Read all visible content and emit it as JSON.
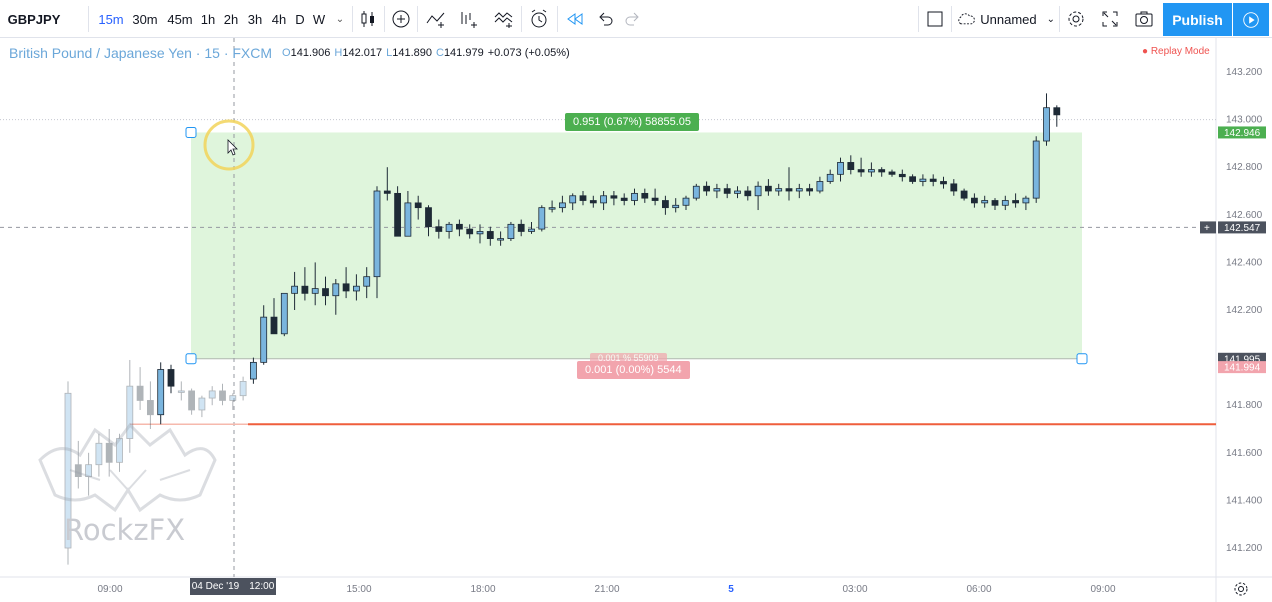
{
  "toolbar": {
    "symbol": "GBPJPY",
    "intervals": [
      "15m",
      "30m",
      "45m",
      "1h",
      "2h",
      "3h",
      "4h",
      "D",
      "W"
    ],
    "active_interval": "15m",
    "layout_name": "Unnamed",
    "publish_label": "Publish",
    "icons": [
      "candles-icon",
      "add-indicator-icon",
      "indicators-icon",
      "compare-icon",
      "templates-icon",
      "alert-icon",
      "replay-icon",
      "undo-icon",
      "redo-icon",
      "layout-icon",
      "cloud-icon",
      "settings-icon",
      "fullscreen-icon",
      "snapshot-icon",
      "play-icon"
    ]
  },
  "legend": {
    "title": "British Pound / Japanese Yen · 15 · FXCM",
    "open_label": "O",
    "open": "141.906",
    "high_label": "H",
    "high": "142.017",
    "low_label": "L",
    "low": "141.890",
    "close_label": "C",
    "close": "141.979",
    "change": "+0.073 (+0.05%)"
  },
  "replay_mode": "● Replay Mode",
  "position_tool": {
    "upper_label": "0.951 (0.67%) 58855.05",
    "lower_label": "0.001 (0.00%) 5544",
    "lower_ghost_label": "0.001 % 55909"
  },
  "price_tags": {
    "target": "142.946",
    "crosshair": "142.547",
    "entry": "141.995",
    "stop": "141.994"
  },
  "time_tag": {
    "date": "04 Dec '19",
    "time": "12:00"
  },
  "watermark": "RockzFX",
  "colors": {
    "up_candle": "#7ab5de",
    "down_candle": "#1e2a36",
    "profit_zone": "#dff5dc",
    "loss_zone": "#f8d7da",
    "stop_line": "#ef5e3c",
    "accent": "#2196f3"
  },
  "chart_data": {
    "type": "candlestick",
    "symbol": "GBPJPY",
    "y_ticks": [
      "143.200",
      "143.000",
      "142.800",
      "142.600",
      "142.400",
      "142.200",
      "142.000",
      "141.800",
      "141.600",
      "141.400",
      "141.200"
    ],
    "ylim": [
      141.13,
      143.24
    ],
    "x_ticks": [
      "09:00",
      "12:00",
      "15:00",
      "18:00",
      "21:00",
      "5",
      "03:00",
      "06:00",
      "09:00"
    ],
    "candles": [
      {
        "o": 141.2,
        "h": 141.9,
        "l": 141.13,
        "c": 141.85,
        "f": 1
      },
      {
        "o": 141.55,
        "h": 141.65,
        "l": 141.45,
        "c": 141.5,
        "f": 1
      },
      {
        "o": 141.5,
        "h": 141.6,
        "l": 141.42,
        "c": 141.55,
        "f": 1
      },
      {
        "o": 141.55,
        "h": 141.68,
        "l": 141.5,
        "c": 141.64,
        "f": 1
      },
      {
        "o": 141.64,
        "h": 141.7,
        "l": 141.5,
        "c": 141.56,
        "f": 1
      },
      {
        "o": 141.56,
        "h": 141.68,
        "l": 141.52,
        "c": 141.66,
        "f": 1
      },
      {
        "o": 141.66,
        "h": 141.99,
        "l": 141.6,
        "c": 141.88,
        "f": 1
      },
      {
        "o": 141.88,
        "h": 141.96,
        "l": 141.78,
        "c": 141.82,
        "f": 1
      },
      {
        "o": 141.82,
        "h": 141.9,
        "l": 141.7,
        "c": 141.76,
        "f": 1
      },
      {
        "o": 141.76,
        "h": 141.98,
        "l": 141.72,
        "c": 141.95,
        "f": 0
      },
      {
        "o": 141.95,
        "h": 141.97,
        "l": 141.85,
        "c": 141.88,
        "f": 0
      },
      {
        "o": 141.86,
        "h": 141.9,
        "l": 141.82,
        "c": 141.86,
        "f": 1
      },
      {
        "o": 141.86,
        "h": 141.87,
        "l": 141.76,
        "c": 141.78,
        "f": 1
      },
      {
        "o": 141.78,
        "h": 141.84,
        "l": 141.75,
        "c": 141.83,
        "f": 1
      },
      {
        "o": 141.83,
        "h": 141.88,
        "l": 141.8,
        "c": 141.86,
        "f": 1
      },
      {
        "o": 141.86,
        "h": 141.89,
        "l": 141.8,
        "c": 141.82,
        "f": 1
      },
      {
        "o": 141.82,
        "h": 141.85,
        "l": 141.78,
        "c": 141.84,
        "f": 1
      },
      {
        "o": 141.84,
        "h": 141.92,
        "l": 141.82,
        "c": 141.9,
        "f": 1
      },
      {
        "o": 141.91,
        "h": 142.0,
        "l": 141.89,
        "c": 141.98,
        "f": 0
      },
      {
        "o": 141.98,
        "h": 142.22,
        "l": 141.97,
        "c": 142.17,
        "f": 0
      },
      {
        "o": 142.17,
        "h": 142.25,
        "l": 142.1,
        "c": 142.1,
        "f": 0
      },
      {
        "o": 142.1,
        "h": 142.27,
        "l": 142.09,
        "c": 142.27,
        "f": 0
      },
      {
        "o": 142.27,
        "h": 142.36,
        "l": 142.2,
        "c": 142.3,
        "f": 0
      },
      {
        "o": 142.3,
        "h": 142.38,
        "l": 142.24,
        "c": 142.27,
        "f": 0
      },
      {
        "o": 142.27,
        "h": 142.4,
        "l": 142.22,
        "c": 142.29,
        "f": 0
      },
      {
        "o": 142.29,
        "h": 142.34,
        "l": 142.22,
        "c": 142.26,
        "f": 0
      },
      {
        "o": 142.26,
        "h": 142.33,
        "l": 142.18,
        "c": 142.31,
        "f": 0
      },
      {
        "o": 142.31,
        "h": 142.38,
        "l": 142.25,
        "c": 142.28,
        "f": 0
      },
      {
        "o": 142.28,
        "h": 142.35,
        "l": 142.24,
        "c": 142.3,
        "f": 0
      },
      {
        "o": 142.3,
        "h": 142.38,
        "l": 142.25,
        "c": 142.34,
        "f": 0
      },
      {
        "o": 142.34,
        "h": 142.72,
        "l": 142.25,
        "c": 142.7,
        "f": 0
      },
      {
        "o": 142.7,
        "h": 142.8,
        "l": 142.66,
        "c": 142.69,
        "f": 0
      },
      {
        "o": 142.69,
        "h": 142.72,
        "l": 142.51,
        "c": 142.51,
        "f": 0
      },
      {
        "o": 142.51,
        "h": 142.7,
        "l": 142.51,
        "c": 142.65,
        "f": 0
      },
      {
        "o": 142.65,
        "h": 142.68,
        "l": 142.58,
        "c": 142.63,
        "f": 0
      },
      {
        "o": 142.63,
        "h": 142.64,
        "l": 142.51,
        "c": 142.55,
        "f": 0
      },
      {
        "o": 142.55,
        "h": 142.58,
        "l": 142.5,
        "c": 142.53,
        "f": 0
      },
      {
        "o": 142.53,
        "h": 142.57,
        "l": 142.5,
        "c": 142.56,
        "f": 0
      },
      {
        "o": 142.56,
        "h": 142.58,
        "l": 142.51,
        "c": 142.54,
        "f": 0
      },
      {
        "o": 142.54,
        "h": 142.56,
        "l": 142.5,
        "c": 142.52,
        "f": 0
      },
      {
        "o": 142.52,
        "h": 142.56,
        "l": 142.48,
        "c": 142.53,
        "f": 0
      },
      {
        "o": 142.53,
        "h": 142.55,
        "l": 142.47,
        "c": 142.5,
        "f": 0
      },
      {
        "o": 142.5,
        "h": 142.53,
        "l": 142.47,
        "c": 142.5,
        "f": 0
      },
      {
        "o": 142.5,
        "h": 142.57,
        "l": 142.49,
        "c": 142.56,
        "f": 0
      },
      {
        "o": 142.56,
        "h": 142.58,
        "l": 142.51,
        "c": 142.53,
        "f": 0
      },
      {
        "o": 142.53,
        "h": 142.57,
        "l": 142.52,
        "c": 142.54,
        "f": 0
      },
      {
        "o": 142.54,
        "h": 142.64,
        "l": 142.53,
        "c": 142.63,
        "f": 0
      },
      {
        "o": 142.63,
        "h": 142.66,
        "l": 142.61,
        "c": 142.63,
        "f": 0
      },
      {
        "o": 142.63,
        "h": 142.68,
        "l": 142.61,
        "c": 142.65,
        "f": 0
      },
      {
        "o": 142.65,
        "h": 142.69,
        "l": 142.62,
        "c": 142.68,
        "f": 0
      },
      {
        "o": 142.68,
        "h": 142.7,
        "l": 142.64,
        "c": 142.66,
        "f": 0
      },
      {
        "o": 142.66,
        "h": 142.68,
        "l": 142.63,
        "c": 142.65,
        "f": 0
      },
      {
        "o": 142.65,
        "h": 142.7,
        "l": 142.62,
        "c": 142.68,
        "f": 0
      },
      {
        "o": 142.68,
        "h": 142.7,
        "l": 142.64,
        "c": 142.67,
        "f": 0
      },
      {
        "o": 142.67,
        "h": 142.69,
        "l": 142.64,
        "c": 142.66,
        "f": 0
      },
      {
        "o": 142.66,
        "h": 142.71,
        "l": 142.64,
        "c": 142.69,
        "f": 0
      },
      {
        "o": 142.69,
        "h": 142.71,
        "l": 142.65,
        "c": 142.67,
        "f": 0
      },
      {
        "o": 142.67,
        "h": 142.71,
        "l": 142.64,
        "c": 142.66,
        "f": 0
      },
      {
        "o": 142.66,
        "h": 142.68,
        "l": 142.6,
        "c": 142.63,
        "f": 0
      },
      {
        "o": 142.63,
        "h": 142.67,
        "l": 142.61,
        "c": 142.64,
        "f": 0
      },
      {
        "o": 142.64,
        "h": 142.68,
        "l": 142.62,
        "c": 142.67,
        "f": 0
      },
      {
        "o": 142.67,
        "h": 142.73,
        "l": 142.66,
        "c": 142.72,
        "f": 0
      },
      {
        "o": 142.72,
        "h": 142.74,
        "l": 142.68,
        "c": 142.7,
        "f": 0
      },
      {
        "o": 142.7,
        "h": 142.73,
        "l": 142.67,
        "c": 142.71,
        "f": 0
      },
      {
        "o": 142.71,
        "h": 142.73,
        "l": 142.67,
        "c": 142.69,
        "f": 0
      },
      {
        "o": 142.69,
        "h": 142.72,
        "l": 142.67,
        "c": 142.7,
        "f": 0
      },
      {
        "o": 142.7,
        "h": 142.72,
        "l": 142.66,
        "c": 142.68,
        "f": 0
      },
      {
        "o": 142.68,
        "h": 142.74,
        "l": 142.62,
        "c": 142.72,
        "f": 0
      },
      {
        "o": 142.72,
        "h": 142.75,
        "l": 142.68,
        "c": 142.7,
        "f": 0
      },
      {
        "o": 142.7,
        "h": 142.73,
        "l": 142.68,
        "c": 142.71,
        "f": 0
      },
      {
        "o": 142.71,
        "h": 142.8,
        "l": 142.66,
        "c": 142.7,
        "f": 0
      },
      {
        "o": 142.7,
        "h": 142.73,
        "l": 142.67,
        "c": 142.71,
        "f": 0
      },
      {
        "o": 142.71,
        "h": 142.73,
        "l": 142.68,
        "c": 142.7,
        "f": 0
      },
      {
        "o": 142.7,
        "h": 142.76,
        "l": 142.69,
        "c": 142.74,
        "f": 0
      },
      {
        "o": 142.74,
        "h": 142.79,
        "l": 142.73,
        "c": 142.77,
        "f": 0
      },
      {
        "o": 142.77,
        "h": 142.84,
        "l": 142.74,
        "c": 142.82,
        "f": 0
      },
      {
        "o": 142.82,
        "h": 142.85,
        "l": 142.77,
        "c": 142.79,
        "f": 0
      },
      {
        "o": 142.79,
        "h": 142.84,
        "l": 142.76,
        "c": 142.78,
        "f": 0
      },
      {
        "o": 142.78,
        "h": 142.82,
        "l": 142.76,
        "c": 142.79,
        "f": 0
      },
      {
        "o": 142.79,
        "h": 142.8,
        "l": 142.76,
        "c": 142.78,
        "f": 0
      },
      {
        "o": 142.78,
        "h": 142.79,
        "l": 142.76,
        "c": 142.77,
        "f": 0
      },
      {
        "o": 142.77,
        "h": 142.79,
        "l": 142.74,
        "c": 142.76,
        "f": 0
      },
      {
        "o": 142.76,
        "h": 142.77,
        "l": 142.73,
        "c": 142.74,
        "f": 0
      },
      {
        "o": 142.74,
        "h": 142.77,
        "l": 142.72,
        "c": 142.75,
        "f": 0
      },
      {
        "o": 142.75,
        "h": 142.77,
        "l": 142.72,
        "c": 142.74,
        "f": 0
      },
      {
        "o": 142.74,
        "h": 142.76,
        "l": 142.71,
        "c": 142.73,
        "f": 0
      },
      {
        "o": 142.73,
        "h": 142.75,
        "l": 142.68,
        "c": 142.7,
        "f": 0
      },
      {
        "o": 142.7,
        "h": 142.71,
        "l": 142.66,
        "c": 142.67,
        "f": 0
      },
      {
        "o": 142.67,
        "h": 142.69,
        "l": 142.63,
        "c": 142.65,
        "f": 0
      },
      {
        "o": 142.65,
        "h": 142.68,
        "l": 142.63,
        "c": 142.66,
        "f": 0
      },
      {
        "o": 142.66,
        "h": 142.67,
        "l": 142.62,
        "c": 142.64,
        "f": 0
      },
      {
        "o": 142.64,
        "h": 142.68,
        "l": 142.62,
        "c": 142.66,
        "f": 0
      },
      {
        "o": 142.66,
        "h": 142.69,
        "l": 142.63,
        "c": 142.65,
        "f": 0
      },
      {
        "o": 142.65,
        "h": 142.68,
        "l": 142.62,
        "c": 142.67,
        "f": 0
      },
      {
        "o": 142.67,
        "h": 142.93,
        "l": 142.65,
        "c": 142.91,
        "f": 0
      },
      {
        "o": 142.91,
        "h": 143.11,
        "l": 142.89,
        "c": 143.05,
        "f": 0
      },
      {
        "o": 143.05,
        "h": 143.06,
        "l": 142.97,
        "c": 143.02,
        "f": 0
      }
    ],
    "position": {
      "entry": 141.995,
      "target": 142.946,
      "stop": 141.994
    },
    "stop_line": 141.72
  }
}
